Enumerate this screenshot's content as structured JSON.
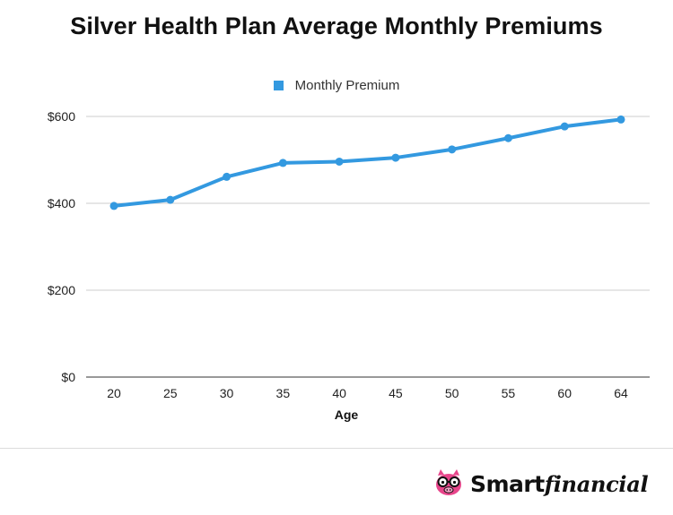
{
  "chart_data": {
    "type": "line",
    "title": "Silver Health Plan Average Monthly Premiums",
    "xlabel": "Age",
    "ylabel": "",
    "categories": [
      "20",
      "25",
      "30",
      "35",
      "40",
      "45",
      "50",
      "55",
      "60",
      "64"
    ],
    "series": [
      {
        "name": "Monthly Premium",
        "values": [
          394,
          408,
          461,
          493,
          496,
          505,
          524,
          550,
          577,
          593
        ]
      }
    ],
    "ylim": [
      0,
      600
    ],
    "yticks": [
      0,
      200,
      400,
      600
    ],
    "ytick_labels": [
      "$0",
      "$200",
      "$400",
      "$600"
    ],
    "grid": true,
    "legend_position": "top-center",
    "color": "#3399e0"
  },
  "brand": {
    "part1": "Smart",
    "part2": "financial",
    "logo_icon": "piggy-bank-with-glasses-icon"
  }
}
